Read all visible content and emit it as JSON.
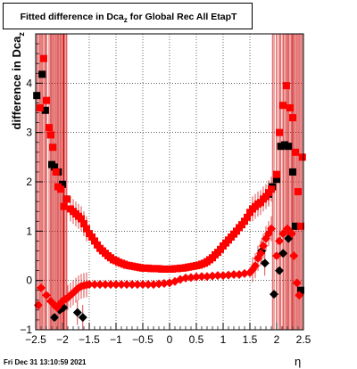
{
  "page": {
    "title_main": "Fitted difference in Dca",
    "title_sub": "z",
    "title_rest": "for Global Rec All EtapT",
    "ylabel_main": "difference in Dca",
    "ylabel_sub": "z",
    "xlabel": "η",
    "footer": "Fri Dec 31 13:10:59 2021"
  },
  "chart_data": {
    "type": "scatter",
    "xlim": [
      -2.5,
      2.5
    ],
    "ylim": [
      -1.0,
      5.0
    ],
    "xticks": [
      "-2.5",
      "-2",
      "-1.5",
      "-1",
      "-0.5",
      "0",
      "0.5",
      "1",
      "1.5",
      "2",
      "2.5"
    ],
    "yticks": [
      "-1",
      "0",
      "1",
      "2",
      "3",
      "4"
    ],
    "grid": true,
    "colors": {
      "black_series": "#000000",
      "red_series": "#ff0000",
      "error_bar": "#cc0000"
    },
    "series": [
      {
        "marker": "square",
        "color": "#000000",
        "points": [
          [
            -2.48,
            3.75
          ],
          [
            -2.38,
            4.18
          ],
          [
            -2.32,
            3.45
          ],
          [
            -2.2,
            2.35
          ],
          [
            -2.15,
            2.3
          ],
          [
            -2.08,
            2.2
          ],
          [
            -2.0,
            1.95
          ],
          [
            -1.92,
            1.65
          ],
          [
            1.85,
            1.75
          ],
          [
            1.92,
            1.9
          ],
          [
            2.0,
            2.05
          ],
          [
            2.08,
            2.72
          ],
          [
            2.15,
            2.75
          ],
          [
            2.22,
            2.72
          ],
          [
            2.3,
            2.2
          ],
          [
            2.35,
            1.1
          ],
          [
            2.45,
            -0.2
          ]
        ]
      },
      {
        "marker": "diamond",
        "color": "#000000",
        "points": [
          [
            -2.15,
            -0.75
          ],
          [
            -2.05,
            -0.6
          ],
          [
            -1.98,
            -0.55
          ],
          [
            -1.72,
            -0.65
          ],
          [
            -1.62,
            -0.75
          ],
          [
            1.72,
            0.6
          ],
          [
            1.78,
            0.35
          ],
          [
            1.95,
            -0.28
          ],
          [
            2.05,
            0.2
          ],
          [
            2.12,
            0.55
          ],
          [
            2.22,
            0.85
          ],
          [
            2.28,
            0.95
          ]
        ]
      },
      {
        "marker": "square",
        "color": "#ff0000",
        "points": [
          [
            -2.42,
            3.5
          ],
          [
            -2.35,
            4.5
          ],
          [
            -2.3,
            3.65
          ],
          [
            -2.25,
            3.1
          ],
          [
            -2.22,
            2.95
          ],
          [
            -2.18,
            2.7
          ],
          [
            -2.12,
            2.2
          ],
          [
            -2.08,
            1.9
          ],
          [
            -2.03,
            1.85
          ],
          [
            -1.97,
            1.5
          ],
          [
            -1.92,
            1.65
          ],
          [
            -1.85,
            1.45
          ],
          [
            -1.8,
            1.4
          ],
          [
            -1.75,
            1.35
          ],
          [
            -1.7,
            1.3
          ],
          [
            -1.65,
            1.25
          ],
          [
            -1.6,
            1.15
          ],
          [
            -1.55,
            1.05
          ],
          [
            -1.5,
            0.95
          ],
          [
            -1.45,
            0.88
          ],
          [
            -1.4,
            0.8
          ],
          [
            -1.35,
            0.72
          ],
          [
            -1.3,
            0.65
          ],
          [
            -1.25,
            0.6
          ],
          [
            -1.2,
            0.55
          ],
          [
            -1.15,
            0.5
          ],
          [
            -1.1,
            0.46
          ],
          [
            -1.05,
            0.42
          ],
          [
            -1.0,
            0.4
          ],
          [
            -0.95,
            0.37
          ],
          [
            -0.9,
            0.35
          ],
          [
            -0.85,
            0.33
          ],
          [
            -0.8,
            0.31
          ],
          [
            -0.75,
            0.3
          ],
          [
            -0.7,
            0.29
          ],
          [
            -0.65,
            0.28
          ],
          [
            -0.6,
            0.27
          ],
          [
            -0.55,
            0.26
          ],
          [
            -0.5,
            0.25
          ],
          [
            -0.45,
            0.25
          ],
          [
            -0.4,
            0.25
          ],
          [
            -0.35,
            0.24
          ],
          [
            -0.3,
            0.24
          ],
          [
            -0.25,
            0.24
          ],
          [
            -0.2,
            0.24
          ],
          [
            -0.15,
            0.23
          ],
          [
            -0.1,
            0.23
          ],
          [
            -0.05,
            0.23
          ],
          [
            0.0,
            0.23
          ],
          [
            0.05,
            0.23
          ],
          [
            0.1,
            0.24
          ],
          [
            0.15,
            0.24
          ],
          [
            0.2,
            0.25
          ],
          [
            0.25,
            0.25
          ],
          [
            0.3,
            0.26
          ],
          [
            0.35,
            0.27
          ],
          [
            0.4,
            0.28
          ],
          [
            0.45,
            0.29
          ],
          [
            0.5,
            0.3
          ],
          [
            0.55,
            0.31
          ],
          [
            0.6,
            0.33
          ],
          [
            0.65,
            0.35
          ],
          [
            0.7,
            0.38
          ],
          [
            0.75,
            0.42
          ],
          [
            0.8,
            0.46
          ],
          [
            0.85,
            0.52
          ],
          [
            0.9,
            0.57
          ],
          [
            0.95,
            0.63
          ],
          [
            1.0,
            0.7
          ],
          [
            1.05,
            0.76
          ],
          [
            1.1,
            0.82
          ],
          [
            1.15,
            0.88
          ],
          [
            1.2,
            0.94
          ],
          [
            1.25,
            1.0
          ],
          [
            1.3,
            1.07
          ],
          [
            1.35,
            1.13
          ],
          [
            1.4,
            1.2
          ],
          [
            1.45,
            1.28
          ],
          [
            1.5,
            1.38
          ],
          [
            1.55,
            1.45
          ],
          [
            1.6,
            1.5
          ],
          [
            1.65,
            1.55
          ],
          [
            1.7,
            1.58
          ],
          [
            1.75,
            1.65
          ],
          [
            1.8,
            1.7
          ],
          [
            1.85,
            1.78
          ],
          [
            1.9,
            1.85
          ],
          [
            2.0,
            2.15
          ],
          [
            2.05,
            3.0
          ],
          [
            2.12,
            3.55
          ],
          [
            2.18,
            3.95
          ],
          [
            2.25,
            3.5
          ],
          [
            2.3,
            3.3
          ],
          [
            2.35,
            2.6
          ],
          [
            2.4,
            1.8
          ],
          [
            2.45,
            1.1
          ],
          [
            2.48,
            2.5
          ]
        ]
      },
      {
        "marker": "diamond",
        "color": "#ff0000",
        "points": [
          [
            -2.45,
            -0.5
          ],
          [
            -2.4,
            -0.15
          ],
          [
            -2.3,
            -0.3
          ],
          [
            -2.22,
            -0.42
          ],
          [
            -2.15,
            -0.5
          ],
          [
            -2.1,
            -0.55
          ],
          [
            -2.05,
            -0.48
          ],
          [
            -2.0,
            -0.42
          ],
          [
            -1.95,
            -0.38
          ],
          [
            -1.9,
            -0.35
          ],
          [
            -1.85,
            -0.3
          ],
          [
            -1.8,
            -0.25
          ],
          [
            -1.75,
            -0.2
          ],
          [
            -1.7,
            -0.15
          ],
          [
            -1.65,
            -0.12
          ],
          [
            -1.6,
            -0.1
          ],
          [
            -1.55,
            -0.09
          ],
          [
            -1.5,
            -0.08
          ],
          [
            -1.4,
            -0.08
          ],
          [
            -1.3,
            -0.08
          ],
          [
            -1.2,
            -0.08
          ],
          [
            -1.1,
            -0.08
          ],
          [
            -1.0,
            -0.08
          ],
          [
            -0.9,
            -0.08
          ],
          [
            -0.8,
            -0.08
          ],
          [
            -0.7,
            -0.08
          ],
          [
            -0.6,
            -0.08
          ],
          [
            -0.5,
            -0.08
          ],
          [
            -0.4,
            -0.08
          ],
          [
            -0.3,
            -0.08
          ],
          [
            -0.2,
            -0.07
          ],
          [
            -0.1,
            -0.06
          ],
          [
            0.0,
            -0.05
          ],
          [
            0.1,
            -0.02
          ],
          [
            0.2,
            0.02
          ],
          [
            0.3,
            0.05
          ],
          [
            0.4,
            0.06
          ],
          [
            0.5,
            0.07
          ],
          [
            0.6,
            0.08
          ],
          [
            0.7,
            0.08
          ],
          [
            0.8,
            0.09
          ],
          [
            0.9,
            0.1
          ],
          [
            1.0,
            0.1
          ],
          [
            1.1,
            0.11
          ],
          [
            1.2,
            0.12
          ],
          [
            1.3,
            0.12
          ],
          [
            1.4,
            0.14
          ],
          [
            1.5,
            0.16
          ],
          [
            1.55,
            0.22
          ],
          [
            1.6,
            0.3
          ],
          [
            1.65,
            0.45
          ],
          [
            1.7,
            0.55
          ],
          [
            1.75,
            0.7
          ],
          [
            1.8,
            0.85
          ],
          [
            1.85,
            0.95
          ],
          [
            1.9,
            1.05
          ],
          [
            2.0,
            0.5
          ],
          [
            2.05,
            0.8
          ],
          [
            2.12,
            0.95
          ],
          [
            2.2,
            1.05
          ],
          [
            2.28,
            0.95
          ],
          [
            2.32,
            0.5
          ],
          [
            2.38,
            -0.05
          ],
          [
            2.42,
            -0.3
          ]
        ]
      }
    ]
  }
}
